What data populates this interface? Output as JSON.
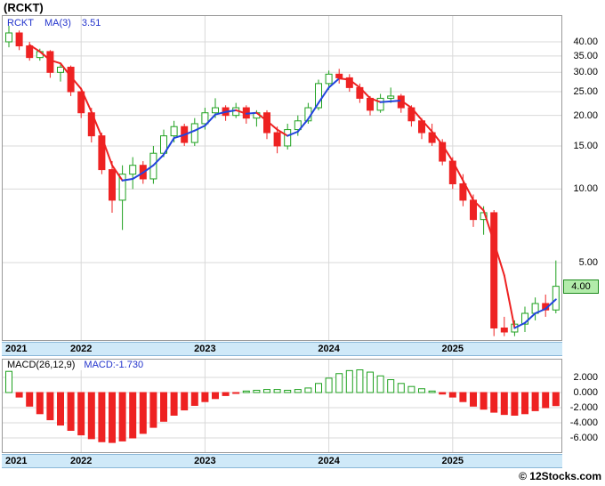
{
  "title": "(RCKT)",
  "legend": {
    "symbol": "RCKT",
    "ma_label": "MA(3)",
    "ma_value": "3.51"
  },
  "macd_header": {
    "label": "MACD(26,12,9)",
    "value": "MACD:-1.730"
  },
  "price_tag": {
    "value": "4.00"
  },
  "footer": {
    "watermark": "© 12Stocks.com"
  },
  "colors": {
    "accent_blue_text": "#2233cc",
    "candle_up": "#1fa11f",
    "candle_up_fill": "#ffffff",
    "candle_down": "#ee2222",
    "ma_rising": "#2244dd",
    "ma_falling": "#ee2222",
    "macd_pos": "#1fa11f",
    "macd_neg": "#ee2222",
    "band_bg": "#cfe9f8",
    "band_border": "#8ab8d8",
    "grid": "#d9d9d9",
    "plot_border": "#999999",
    "tag_bg": "#b2ecaa",
    "tag_border": "#1e8a1e"
  },
  "chart_data": [
    {
      "type": "candlestick",
      "title": "RCKT monthly candlesticks with MA(3)",
      "y_scale": "log",
      "y_ticks": [
        40,
        35,
        30,
        25,
        20,
        15,
        10,
        5
      ],
      "last_price": 4.0,
      "ma_period": 3,
      "ma_last": 3.51,
      "years": [
        {
          "label": "2021",
          "index": 0,
          "edge": true
        },
        {
          "label": "2022",
          "index": 7
        },
        {
          "label": "2023",
          "index": 19
        },
        {
          "label": "2024",
          "index": 31
        },
        {
          "label": "2025",
          "index": 43
        }
      ],
      "candles_ohlc": [
        [
          40.0,
          46.5,
          38.0,
          43.5
        ],
        [
          43.5,
          44.5,
          37.0,
          38.5
        ],
        [
          38.5,
          40.0,
          33.5,
          34.5
        ],
        [
          34.5,
          37.5,
          33.5,
          36.5
        ],
        [
          36.5,
          37.0,
          28.5,
          30.0
        ],
        [
          30.0,
          32.5,
          27.5,
          31.5
        ],
        [
          31.5,
          32.0,
          24.0,
          25.0
        ],
        [
          25.0,
          26.0,
          19.5,
          20.5
        ],
        [
          20.5,
          21.5,
          15.5,
          16.5
        ],
        [
          16.5,
          17.0,
          11.5,
          12.0
        ],
        [
          12.0,
          13.0,
          8.0,
          9.0
        ],
        [
          9.0,
          12.5,
          6.8,
          11.5
        ],
        [
          11.5,
          13.5,
          10.0,
          12.5
        ],
        [
          12.5,
          13.0,
          10.5,
          11.0
        ],
        [
          11.0,
          15.0,
          10.5,
          14.0
        ],
        [
          14.0,
          17.5,
          13.5,
          16.5
        ],
        [
          16.5,
          19.0,
          15.5,
          18.0
        ],
        [
          18.0,
          18.5,
          15.0,
          15.5
        ],
        [
          15.5,
          19.5,
          15.0,
          18.5
        ],
        [
          18.5,
          21.5,
          17.5,
          20.5
        ],
        [
          20.5,
          23.5,
          19.5,
          21.5
        ],
        [
          21.5,
          22.0,
          19.0,
          20.0
        ],
        [
          20.0,
          22.5,
          19.5,
          21.5
        ],
        [
          21.5,
          22.0,
          18.5,
          19.5
        ],
        [
          19.5,
          21.0,
          18.0,
          20.5
        ],
        [
          20.5,
          21.0,
          16.0,
          17.0
        ],
        [
          17.0,
          18.0,
          14.0,
          15.0
        ],
        [
          15.0,
          18.5,
          14.5,
          17.5
        ],
        [
          17.5,
          20.0,
          16.5,
          19.0
        ],
        [
          19.0,
          22.5,
          18.5,
          21.5
        ],
        [
          21.5,
          28.0,
          21.0,
          27.0
        ],
        [
          27.0,
          30.5,
          25.5,
          29.5
        ],
        [
          29.5,
          31.0,
          27.0,
          28.5
        ],
        [
          28.5,
          29.5,
          25.0,
          26.0
        ],
        [
          26.0,
          27.0,
          22.5,
          23.5
        ],
        [
          23.5,
          24.0,
          20.0,
          21.0
        ],
        [
          21.0,
          24.5,
          20.5,
          23.5
        ],
        [
          23.5,
          26.0,
          22.5,
          24.0
        ],
        [
          24.0,
          24.5,
          20.5,
          21.5
        ],
        [
          21.5,
          22.0,
          18.0,
          19.0
        ],
        [
          19.0,
          19.5,
          16.0,
          17.0
        ],
        [
          17.0,
          18.5,
          15.0,
          15.5
        ],
        [
          15.5,
          16.0,
          12.5,
          13.0
        ],
        [
          13.0,
          13.5,
          10.0,
          10.5
        ],
        [
          10.5,
          11.5,
          8.5,
          9.0
        ],
        [
          9.0,
          9.5,
          7.0,
          7.5
        ],
        [
          7.5,
          8.5,
          6.5,
          8.0
        ],
        [
          8.0,
          8.2,
          2.5,
          2.7
        ],
        [
          2.7,
          3.0,
          2.5,
          2.6
        ],
        [
          2.6,
          2.9,
          2.5,
          2.8
        ],
        [
          2.8,
          3.3,
          2.6,
          3.1
        ],
        [
          3.1,
          3.6,
          2.9,
          3.4
        ],
        [
          3.4,
          3.7,
          3.0,
          3.2
        ],
        [
          3.2,
          5.1,
          3.1,
          4.0
        ]
      ]
    },
    {
      "type": "bar",
      "title": "MACD(26,12,9)",
      "y_ticks": [
        2,
        0,
        -2,
        -4,
        -6
      ],
      "last_value": -1.73,
      "values": [
        2.8,
        -0.6,
        -1.8,
        -2.8,
        -3.6,
        -4.3,
        -5.0,
        -5.6,
        -6.1,
        -6.5,
        -6.6,
        -6.4,
        -6.0,
        -5.4,
        -4.6,
        -3.8,
        -3.0,
        -2.3,
        -1.7,
        -1.2,
        -0.8,
        -0.4,
        -0.1,
        0.2,
        0.3,
        0.4,
        0.4,
        0.3,
        0.4,
        0.6,
        1.2,
        1.9,
        2.5,
        2.9,
        3.0,
        2.7,
        2.2,
        1.7,
        1.2,
        0.8,
        0.5,
        0.2,
        -0.2,
        -0.6,
        -1.2,
        -1.8,
        -2.2,
        -2.6,
        -2.9,
        -3.0,
        -2.8,
        -2.4,
        -2.0,
        -1.73
      ]
    }
  ]
}
